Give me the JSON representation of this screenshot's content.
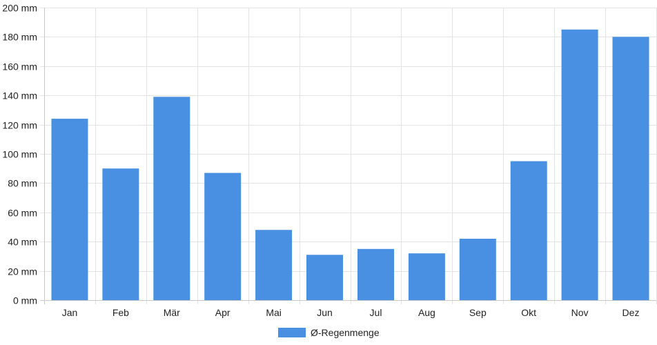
{
  "chart_data": {
    "type": "bar",
    "categories": [
      "Jan",
      "Feb",
      "Mär",
      "Apr",
      "Mai",
      "Jun",
      "Jul",
      "Aug",
      "Sep",
      "Okt",
      "Nov",
      "Dez"
    ],
    "series": [
      {
        "name": "Ø-Regenmenge",
        "values": [
          124,
          90,
          139,
          87,
          48,
          31,
          35,
          32,
          42,
          95,
          185,
          180
        ],
        "color": "#4a90e2"
      }
    ],
    "ylim": [
      0,
      200
    ],
    "y_ticks": [
      "0 mm",
      "20 mm",
      "40 mm",
      "60 mm",
      "80 mm",
      "100 mm",
      "120 mm",
      "140 mm",
      "160 mm",
      "180 mm",
      "200 mm"
    ],
    "y_unit": "mm",
    "grid": true,
    "legend_position": "bottom"
  }
}
